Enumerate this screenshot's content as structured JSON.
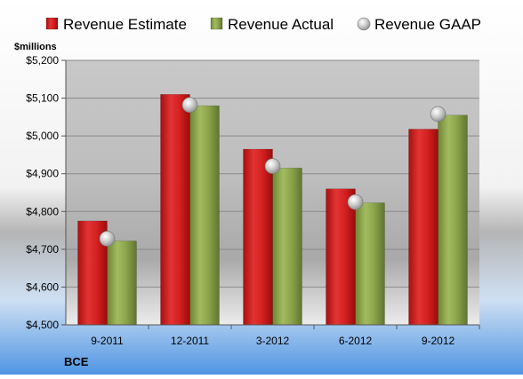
{
  "chart_data": {
    "type": "bar",
    "title": "",
    "company": "BCE",
    "ylabel": "$millions",
    "xlabel": "",
    "categories": [
      "9-2011",
      "12-2011",
      "3-2012",
      "6-2012",
      "9-2012"
    ],
    "ylim": [
      4500,
      5200
    ],
    "yticks": [
      4500,
      4600,
      4700,
      4800,
      4900,
      5000,
      5100,
      5200
    ],
    "ytick_labels": [
      "$4,500",
      "$4,600",
      "$4,700",
      "$4,800",
      "$4,900",
      "$5,000",
      "$5,100",
      "$5,200"
    ],
    "grid": true,
    "legend_position": "top",
    "series": [
      {
        "name": "Revenue Estimate",
        "kind": "bar",
        "color": "#d42020",
        "values": [
          4775,
          5110,
          4965,
          4860,
          5018
        ]
      },
      {
        "name": "Revenue Actual",
        "kind": "bar",
        "color": "#8aa34a",
        "values": [
          4722,
          5080,
          4915,
          4823,
          5055
        ]
      },
      {
        "name": "Revenue GAAP",
        "kind": "marker",
        "color": "#b8b8b8",
        "values": [
          4728,
          5082,
          4920,
          4825,
          5058
        ]
      }
    ]
  }
}
